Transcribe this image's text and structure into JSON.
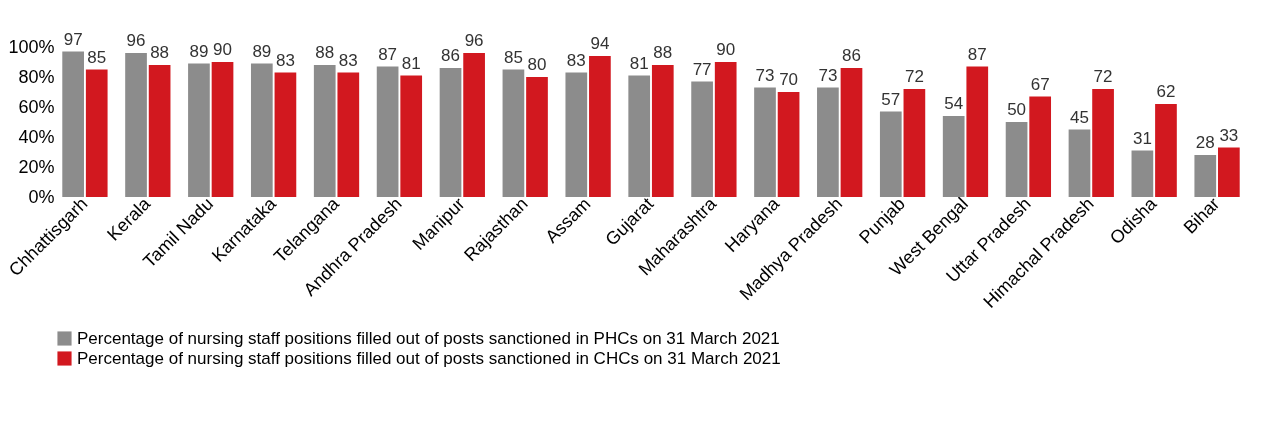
{
  "chart_data": {
    "type": "bar",
    "categories": [
      "Chhattisgarh",
      "Kerala",
      "Tamil Nadu",
      "Karnataka",
      "Telangana",
      "Andhra Pradesh",
      "Manipur",
      "Rajasthan",
      "Assam",
      "Gujarat",
      "Maharashtra",
      "Haryana",
      "Madhya Pradesh",
      "Punjab",
      "West Bengal",
      "Uttar Pradesh",
      "Himachal Pradesh",
      "Odisha",
      "Bihar"
    ],
    "series": [
      {
        "name": "Percentage of nursing staff positions filled out of posts sanctioned in PHCs on 31 March 2021",
        "color": "#8c8c8c",
        "values": [
          97,
          96,
          89,
          89,
          88,
          87,
          86,
          85,
          83,
          81,
          77,
          73,
          73,
          57,
          54,
          50,
          45,
          31,
          28
        ]
      },
      {
        "name": "Percentage of nursing staff positions filled out of posts sanctioned in CHCs on 31 March 2021",
        "color": "#d2181f",
        "values": [
          85,
          88,
          90,
          83,
          83,
          81,
          96,
          80,
          94,
          88,
          90,
          70,
          86,
          72,
          87,
          67,
          72,
          62,
          33
        ]
      }
    ],
    "ylim": [
      0,
      100
    ],
    "yticks": [
      {
        "value": 0,
        "label": "0%"
      },
      {
        "value": 20,
        "label": "20%"
      },
      {
        "value": 40,
        "label": "40%"
      },
      {
        "value": 60,
        "label": "60%"
      },
      {
        "value": 80,
        "label": "80%"
      },
      {
        "value": 100,
        "label": "100%"
      }
    ],
    "grid": false,
    "legend": "bottom",
    "data_labels": true
  }
}
